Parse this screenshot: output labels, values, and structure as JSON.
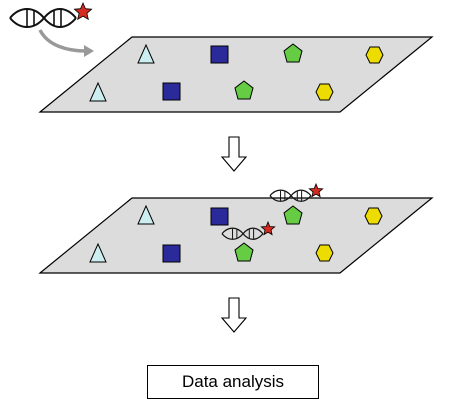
{
  "diagram": {
    "final_step_label": "Data analysis",
    "colors": {
      "slide_fill": "#dcdcdc",
      "triangle": "#cdeef0",
      "square": "#2b2a9a",
      "pentagon": "#66cc44",
      "hexagon": "#ecdc00",
      "star": "#d42a1f",
      "arrow_gray": "#999999"
    },
    "icons": [
      "dna-probe-icon",
      "triangle-spot-icon",
      "square-spot-icon",
      "pentagon-spot-icon",
      "hexagon-spot-icon",
      "down-arrow-icon"
    ]
  }
}
